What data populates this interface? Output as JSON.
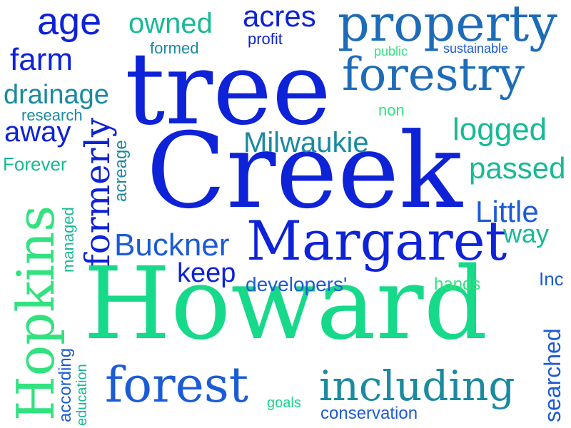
{
  "colors": {
    "blue": "#0e22d8",
    "mid_blue": "#1c5bd6",
    "steel_blue": "#1e6cb8",
    "teal": "#1b8aa0",
    "sea_green": "#18b996",
    "green": "#16d98a",
    "light_green": "#31e27f"
  },
  "words": {
    "tree": "tree",
    "creek": "Creek",
    "howard": "Howard",
    "margaret": "Margaret",
    "property": "property",
    "forestry": "forestry",
    "forest": "forest",
    "including": "including",
    "hopkins": "Hopkins",
    "age": "age",
    "owned": "owned",
    "acres": "acres",
    "profit": "profit",
    "farm": "farm",
    "formed": "formed",
    "public": "public",
    "sustainable": "sustainable",
    "drainage": "drainage",
    "research": "research",
    "non": "non",
    "away": "away",
    "logged": "logged",
    "milwaukie": "Milwaukie",
    "forever": "Forever",
    "formerly": "formerly",
    "acreage": "acreage",
    "passed": "passed",
    "managed": "managed",
    "little": "Little",
    "buckner": "Buckner",
    "way": "way",
    "keep": "keep",
    "developers": "developers'",
    "hands": "hands",
    "inc": "Inc",
    "searched": "searched",
    "according": "according",
    "education": "education",
    "goals": "goals",
    "conservation": "conservation"
  }
}
